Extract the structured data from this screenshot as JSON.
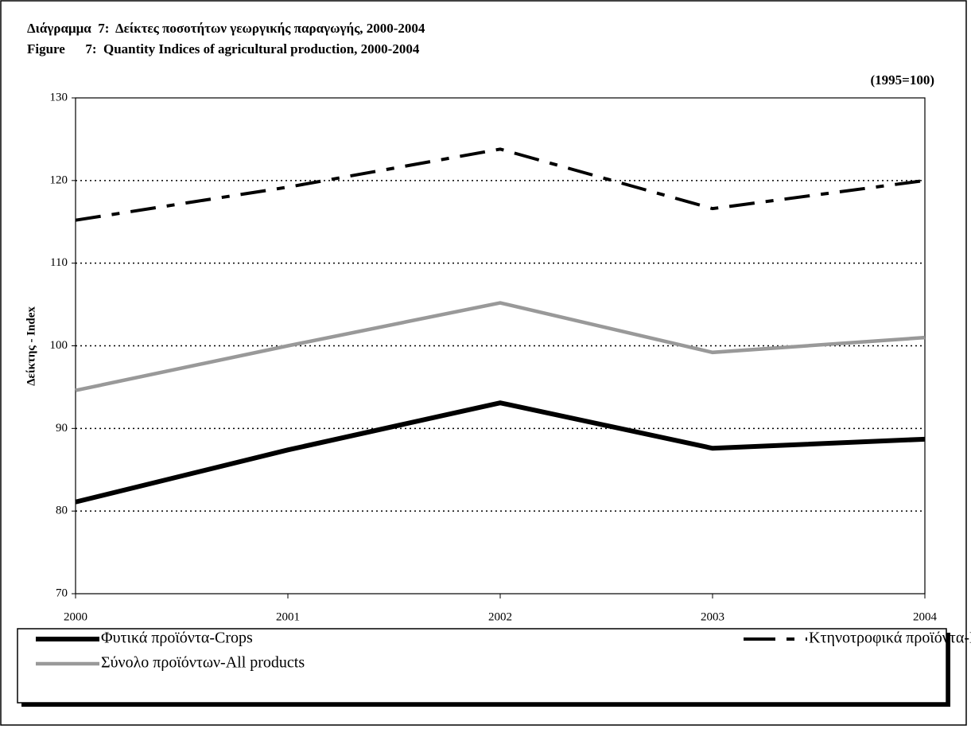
{
  "chart_data": {
    "type": "line",
    "title": "Διάγραμμα  7:  Δείκτες ποσοτήτων γεωργικής παραγωγής, 2000-2004",
    "subtitle": "Figure      7:  Quantity Indices of agricultural production, 2000-2004",
    "note": "(1995=100)",
    "y_label": "Δείκτης - Index",
    "categories": [
      "2000",
      "2001",
      "2002",
      "2003",
      "2004"
    ],
    "series": [
      {
        "name": "Φυτικά προϊόντα-Crops",
        "color": "#000000",
        "line_style": "solid",
        "values": [
          81.1,
          87.4,
          93.1,
          87.6,
          88.7
        ]
      },
      {
        "name": "Κτηνοτροφικά προϊόντα-Livestock products",
        "color": "#000000",
        "line_style": "dash-dot",
        "values": [
          115.2,
          119.2,
          123.8,
          116.6,
          120
        ]
      },
      {
        "name": "Σύνολο προϊόντων-All products",
        "color": "#999999",
        "line_style": "solid",
        "values": [
          94.6,
          100,
          105.2,
          99.2,
          101
        ]
      }
    ],
    "ylim": [
      70,
      130
    ],
    "yticks": [
      70,
      80,
      90,
      100,
      110,
      120,
      130
    ],
    "grid": true,
    "legend": "bottom"
  }
}
